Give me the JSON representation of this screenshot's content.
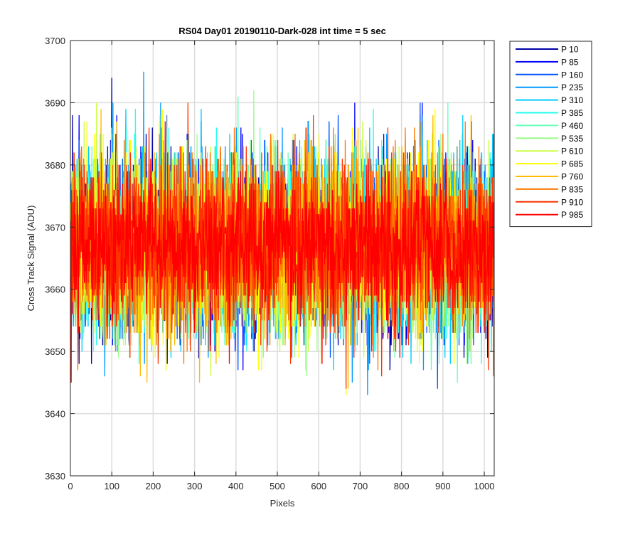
{
  "chart_data": {
    "type": "line",
    "title": "RS04 Day01 20190110-Dark-028 int time = 5 sec",
    "xlabel": "Pixels",
    "ylabel": "Cross Track Signal (ADU)",
    "xlim": [
      0,
      1024
    ],
    "ylim": [
      3630,
      3700
    ],
    "xticks": [
      0,
      100,
      200,
      300,
      400,
      500,
      600,
      700,
      800,
      900,
      1000
    ],
    "yticks": [
      3630,
      3640,
      3650,
      3660,
      3670,
      3680,
      3690,
      3700
    ],
    "grid": true,
    "legend_position": "outside-top-right",
    "series": [
      {
        "name": "P 10",
        "color": "#0000aa",
        "mean": 3667,
        "sd": 7
      },
      {
        "name": "P 85",
        "color": "#0000ff",
        "mean": 3667,
        "sd": 7
      },
      {
        "name": "P 160",
        "color": "#0055ff",
        "mean": 3667,
        "sd": 7
      },
      {
        "name": "P 235",
        "color": "#0099ff",
        "mean": 3667,
        "sd": 7
      },
      {
        "name": "P 310",
        "color": "#00ccff",
        "mean": 3667,
        "sd": 7
      },
      {
        "name": "P 385",
        "color": "#22ffee",
        "mean": 3667,
        "sd": 7
      },
      {
        "name": "P 460",
        "color": "#66ffbb",
        "mean": 3667,
        "sd": 7
      },
      {
        "name": "P 535",
        "color": "#99ff88",
        "mean": 3667,
        "sd": 7
      },
      {
        "name": "P 610",
        "color": "#ccff44",
        "mean": 3667,
        "sd": 7
      },
      {
        "name": "P 685",
        "color": "#ffff00",
        "mean": 3667,
        "sd": 7
      },
      {
        "name": "P 760",
        "color": "#ffbb00",
        "mean": 3667,
        "sd": 7
      },
      {
        "name": "P 835",
        "color": "#ff7700",
        "mean": 3667,
        "sd": 7
      },
      {
        "name": "P 910",
        "color": "#ff3300",
        "mean": 3667,
        "sd": 7
      },
      {
        "name": "P 985",
        "color": "#ff0000",
        "mean": 3667,
        "sd": 6
      }
    ]
  }
}
